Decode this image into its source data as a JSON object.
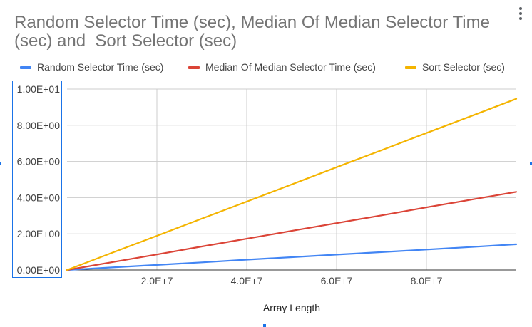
{
  "chart_data": {
    "type": "line",
    "title_lines": [
      "Random Selector Time (sec), Median Of Median Selector Time",
      "(sec) and  Sort Selector (sec)"
    ],
    "xlabel": "Array Length",
    "ylabel": "",
    "xlim": [
      0,
      100000000
    ],
    "ylim": [
      0,
      10
    ],
    "x_ticks": [
      20000000,
      40000000,
      60000000,
      80000000
    ],
    "x_tick_labels": [
      "2.0E+7",
      "4.0E+7",
      "6.0E+7",
      "8.0E+7"
    ],
    "y_ticks": [
      0,
      2,
      4,
      6,
      8,
      10
    ],
    "y_tick_labels": [
      "0.00E+00",
      "2.00E+00",
      "4.00E+00",
      "6.00E+00",
      "8.00E+00",
      "1.00E+01"
    ],
    "grid": true,
    "legend_position": "top",
    "series": [
      {
        "name": "Random Selector Time (sec)",
        "color": "#4285f4",
        "x": [
          0,
          10000000,
          20000000,
          30000000,
          40000000,
          50000000,
          60000000,
          70000000,
          80000000,
          90000000,
          100000000
        ],
        "y": [
          0,
          0.14,
          0.28,
          0.42,
          0.57,
          0.71,
          0.85,
          0.99,
          1.13,
          1.27,
          1.42
        ]
      },
      {
        "name": "Median Of Median Selector Time (sec)",
        "color": "#db4437",
        "x": [
          0,
          10000000,
          20000000,
          30000000,
          40000000,
          50000000,
          60000000,
          70000000,
          80000000,
          90000000,
          100000000
        ],
        "y": [
          0,
          0.43,
          0.86,
          1.3,
          1.73,
          2.16,
          2.59,
          3.02,
          3.46,
          3.89,
          4.32
        ]
      },
      {
        "name": "Sort Selector (sec)",
        "color": "#f4b400",
        "x": [
          0,
          10000000,
          20000000,
          30000000,
          40000000,
          50000000,
          60000000,
          70000000,
          80000000,
          90000000,
          100000000
        ],
        "y": [
          0,
          0.95,
          1.89,
          2.84,
          3.78,
          4.73,
          5.68,
          6.62,
          7.57,
          8.51,
          9.46
        ]
      }
    ]
  }
}
